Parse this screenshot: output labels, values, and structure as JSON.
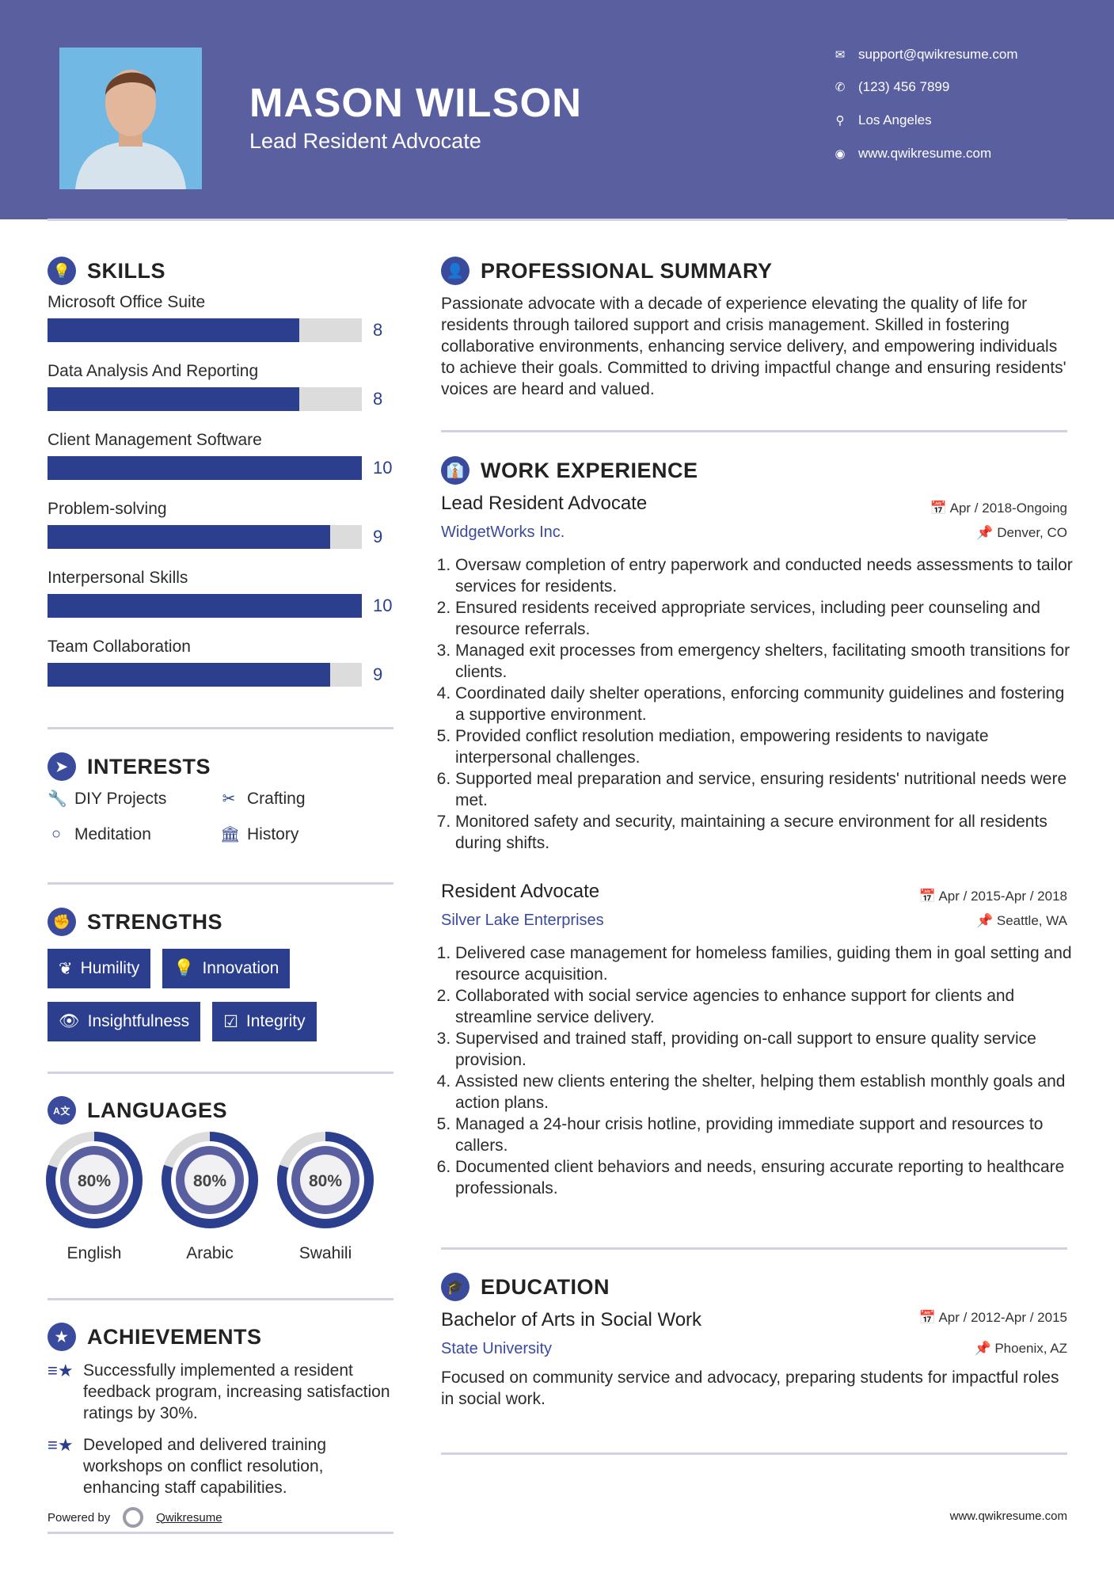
{
  "header": {
    "name": "MASON WILSON",
    "title": "Lead Resident Advocate",
    "contacts": [
      {
        "icon": "envelope-icon",
        "text": "support@qwikresume.com"
      },
      {
        "icon": "phone-icon",
        "text": "(123) 456 7899"
      },
      {
        "icon": "map-pin-icon",
        "text": "Los Angeles"
      },
      {
        "icon": "globe-icon",
        "text": "www.qwikresume.com"
      }
    ]
  },
  "colors": {
    "header": "#5a5fa0",
    "accent": "#2b3f8e",
    "bar_track": "#dcdcdc"
  },
  "skills": {
    "heading": "SKILLS",
    "items": [
      {
        "label": "Microsoft Office Suite",
        "value": 8,
        "max": 10,
        "display": "8"
      },
      {
        "label": "Data Analysis And Reporting",
        "value": 8,
        "max": 10,
        "display": "8"
      },
      {
        "label": "Client Management Software",
        "value": 10,
        "max": 10,
        "display": "10"
      },
      {
        "label": "Problem-solving",
        "value": 9,
        "max": 10,
        "display": "9"
      },
      {
        "label": "Interpersonal Skills",
        "value": 10,
        "max": 10,
        "display": "10"
      },
      {
        "label": "Team Collaboration",
        "value": 9,
        "max": 10,
        "display": "9"
      }
    ]
  },
  "interests": {
    "heading": "INTERESTS",
    "items": [
      {
        "icon": "wrench-icon",
        "label": "DIY Projects"
      },
      {
        "icon": "scissors-icon",
        "label": "Crafting"
      },
      {
        "icon": "circle-icon",
        "label": "Meditation"
      },
      {
        "icon": "bank-icon",
        "label": "History"
      }
    ]
  },
  "strengths": {
    "heading": "STRENGTHS",
    "items": [
      {
        "icon": "leaf-icon",
        "label": "Humility"
      },
      {
        "icon": "lightbulb-icon",
        "label": "Innovation"
      },
      {
        "icon": "eye-icon",
        "label": "Insightfulness"
      },
      {
        "icon": "check-square-icon",
        "label": "Integrity"
      }
    ]
  },
  "languages": {
    "heading": "LANGUAGES",
    "items": [
      {
        "label": "English",
        "percent": 80,
        "display": "80%"
      },
      {
        "label": "Arabic",
        "percent": 80,
        "display": "80%"
      },
      {
        "label": "Swahili",
        "percent": 80,
        "display": "80%"
      }
    ]
  },
  "achievements": {
    "heading": "ACHIEVEMENTS",
    "items": [
      "Successfully implemented a resident feedback program, increasing satisfaction ratings by 30%.",
      "Developed and delivered training workshops on conflict resolution, enhancing staff capabilities."
    ]
  },
  "summary": {
    "heading": "PROFESSIONAL SUMMARY",
    "text": "Passionate advocate with a decade of experience elevating the quality of life for residents through tailored support and crisis management. Skilled in fostering collaborative environments, enhancing service delivery, and empowering individuals to achieve their goals. Committed to driving impactful change and ensuring residents' voices are heard and valued."
  },
  "experience": {
    "heading": "WORK EXPERIENCE",
    "jobs": [
      {
        "title": "Lead Resident Advocate",
        "company": "WidgetWorks Inc.",
        "dates": "Apr / 2018-Ongoing",
        "location": "Denver, CO",
        "bullets": [
          "Oversaw completion of entry paperwork and conducted needs assessments to tailor services for residents.",
          "Ensured residents received appropriate services, including peer counseling and resource referrals.",
          "Managed exit processes from emergency shelters, facilitating smooth transitions for clients.",
          "Coordinated daily shelter operations, enforcing community guidelines and fostering a supportive environment.",
          "Provided conflict resolution mediation, empowering residents to navigate interpersonal challenges.",
          "Supported meal preparation and service, ensuring residents' nutritional needs were met.",
          "Monitored safety and security, maintaining a secure environment for all residents during shifts."
        ]
      },
      {
        "title": "Resident Advocate",
        "company": "Silver Lake Enterprises",
        "dates": "Apr / 2015-Apr / 2018",
        "location": "Seattle, WA",
        "bullets": [
          "Delivered case management for homeless families, guiding them in goal setting and resource acquisition.",
          "Collaborated with social service agencies to enhance support for clients and streamline service delivery.",
          "Supervised and trained staff, providing on-call support to ensure quality service provision.",
          "Assisted new clients entering the shelter, helping them establish monthly goals and action plans.",
          "Managed a 24-hour crisis hotline, providing immediate support and resources to callers.",
          "Documented client behaviors and needs, ensuring accurate reporting to healthcare professionals."
        ]
      }
    ]
  },
  "education": {
    "heading": "EDUCATION",
    "degree": "Bachelor of Arts in Social Work",
    "school": "State University",
    "dates": "Apr / 2012-Apr / 2015",
    "location": "Phoenix, AZ",
    "text": "Focused on community service and advocacy, preparing students for impactful roles in social work."
  },
  "footer": {
    "powered_by": "Powered by",
    "brand": "Qwikresume",
    "website": "www.qwikresume.com"
  }
}
